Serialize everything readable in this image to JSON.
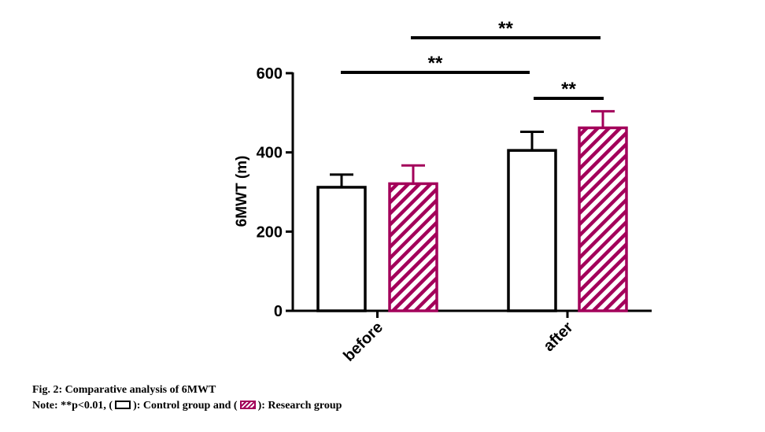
{
  "chart_data": {
    "type": "bar",
    "ylabel": "6MWT (m)",
    "ylim": [
      0,
      600
    ],
    "yticks": [
      0,
      200,
      400,
      600
    ],
    "categories": [
      "before",
      "after"
    ],
    "series": [
      {
        "name": "Control group",
        "values": [
          312,
          405
        ],
        "errors": [
          32,
          47
        ],
        "color": "#000000",
        "pattern": "none"
      },
      {
        "name": "Research group",
        "values": [
          321,
          462
        ],
        "errors": [
          46,
          42
        ],
        "color": "#a3005a",
        "pattern": "hatched"
      }
    ],
    "significance": [
      {
        "label": "**",
        "from": "before-Control group",
        "to": "after-Control group"
      },
      {
        "label": "**",
        "from": "before-Research group",
        "to": "after-Research group"
      },
      {
        "label": "**",
        "from": "after-Control group",
        "to": "after-Research group"
      }
    ]
  },
  "caption": {
    "title": "Fig. 2: Comparative analysis of 6MWT",
    "note_prefix": "Note: **p<0.01, (",
    "control_label": "): Control group and (",
    "research_label": "): Research group"
  },
  "colors": {
    "control": "#000000",
    "research": "#a3005a"
  }
}
